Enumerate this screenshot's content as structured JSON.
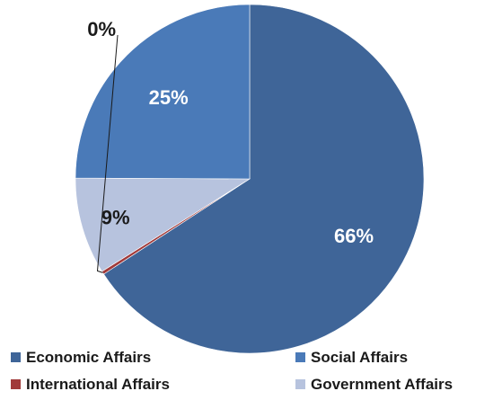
{
  "chart_data": {
    "type": "pie",
    "title": "",
    "slices": [
      {
        "label": "Economic Affairs",
        "value": 66,
        "display": "66%",
        "color": "#3f6598"
      },
      {
        "label": "International Affairs",
        "value": 0.3,
        "display": "0%",
        "color": "#a13a3a"
      },
      {
        "label": "Government Affairs",
        "value": 9,
        "display": "9%",
        "color": "#b7c3de"
      },
      {
        "label": "Social Affairs",
        "value": 25,
        "display": "25%",
        "color": "#4a7ab8"
      }
    ],
    "legend": {
      "placement": "bottom",
      "entries": [
        "Economic Affairs",
        "Social Affairs",
        "International Affairs",
        "Government Affairs"
      ]
    }
  }
}
